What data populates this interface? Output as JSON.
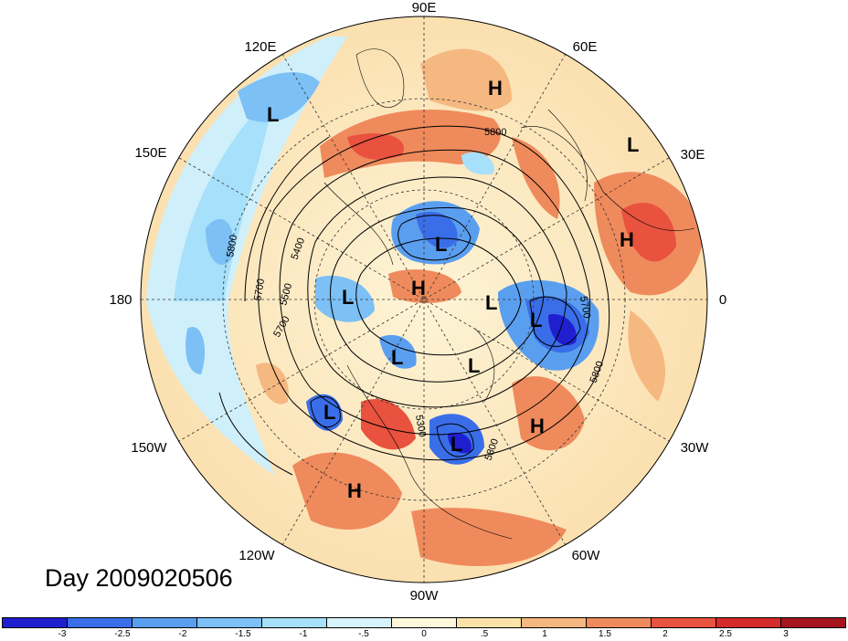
{
  "title": "Day 2009020506",
  "longitude_labels": [
    "90E",
    "60E",
    "30E",
    "0",
    "30W",
    "60W",
    "90W",
    "120W",
    "150W",
    "180",
    "150E",
    "120E"
  ],
  "contour_labels": [
    "5800",
    "5800",
    "5700",
    "5500",
    "5400",
    "5700",
    "5700",
    "5800",
    "5300",
    "5800"
  ],
  "pressure_centers": [
    {
      "letter": "L",
      "key": "l1"
    },
    {
      "letter": "H",
      "key": "h1"
    },
    {
      "letter": "L",
      "key": "l2"
    },
    {
      "letter": "H",
      "key": "h2"
    },
    {
      "letter": "L",
      "key": "l3"
    },
    {
      "letter": "L",
      "key": "l4"
    },
    {
      "letter": "H",
      "key": "h3"
    },
    {
      "letter": "L",
      "key": "l5"
    },
    {
      "letter": "L",
      "key": "l6"
    },
    {
      "letter": "L",
      "key": "l7"
    },
    {
      "letter": "L",
      "key": "l8"
    },
    {
      "letter": "L",
      "key": "l9"
    },
    {
      "letter": "H",
      "key": "h4"
    },
    {
      "letter": "L",
      "key": "l10"
    },
    {
      "letter": "H",
      "key": "h5"
    }
  ],
  "colorbar": {
    "ticks": [
      "-3",
      "-2.5",
      "-2",
      "-1.5",
      "-1",
      "-.5",
      "0",
      ".5",
      "1",
      "1.5",
      "2",
      "2.5",
      "3"
    ],
    "colors": [
      "#1f1fd0",
      "#3a6ee8",
      "#5a9ef0",
      "#7cc0f5",
      "#a6e0fa",
      "#d8f4fb",
      "#fdf8dc",
      "#fbe3a8",
      "#f5b880",
      "#ef8a5c",
      "#e8523e",
      "#d42a2a",
      "#a6141e"
    ]
  }
}
